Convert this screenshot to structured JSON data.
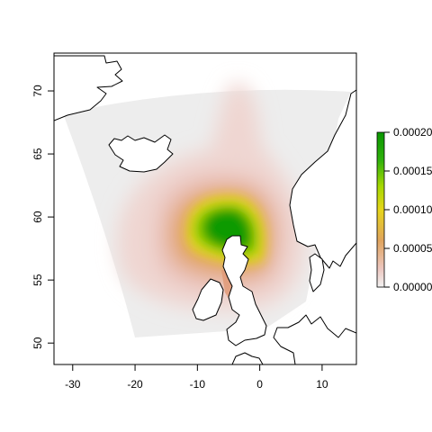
{
  "chart_data": {
    "type": "heatmap",
    "title": "",
    "xlabel": "",
    "ylabel": "",
    "xlim": [
      -33,
      15.5
    ],
    "ylim": [
      48.3,
      73
    ],
    "x_ticks": [
      -30,
      -20,
      -10,
      0,
      10
    ],
    "y_ticks": [
      50,
      55,
      60,
      65,
      70
    ],
    "x_tick_labels": [
      "-30",
      "-20",
      "-10",
      "0",
      "10"
    ],
    "y_tick_labels": [
      "50",
      "55",
      "60",
      "65",
      "70"
    ],
    "grid": false,
    "legend_position": "right",
    "colorbar": {
      "min": 0,
      "max": 0.0002,
      "ticks": [
        0,
        5e-05,
        0.0001,
        0.00015,
        0.0002
      ],
      "tick_labels": [
        "0.00000",
        "0.00005",
        "0.00010",
        "0.00015",
        "0.00020"
      ],
      "colors": [
        "#f2f2f2",
        "#ecc6bf",
        "#e0a45e",
        "#e6d51a",
        "#a6d800",
        "#2fb10c",
        "#0a9700"
      ]
    },
    "field": {
      "background_value": 0,
      "peak": {
        "lon": -5,
        "lat": 59,
        "value": 0.0002
      },
      "ridge_toward_north": {
        "lon": -4,
        "lat": 70
      }
    },
    "basemap": "coastlines"
  }
}
